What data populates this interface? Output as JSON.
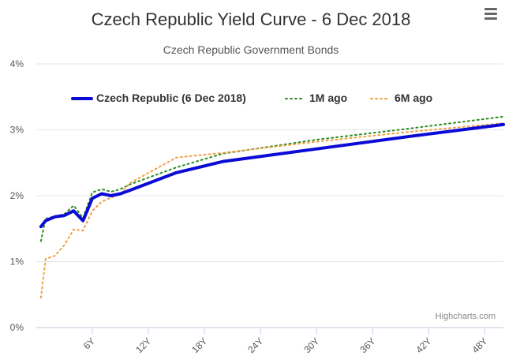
{
  "chart_data": {
    "type": "line",
    "title": "Czech Republic Yield Curve - 6 Dec 2018",
    "subtitle": "Czech Republic Government Bonds",
    "xlabel": "",
    "ylabel": "",
    "xlim": [
      0,
      50
    ],
    "ylim": [
      0,
      4
    ],
    "x_ticks": [
      {
        "value": 6,
        "label": "6Y"
      },
      {
        "value": 12,
        "label": "12Y"
      },
      {
        "value": 18,
        "label": "18Y"
      },
      {
        "value": 24,
        "label": "24Y"
      },
      {
        "value": 30,
        "label": "30Y"
      },
      {
        "value": 36,
        "label": "36Y"
      },
      {
        "value": 42,
        "label": "42Y"
      },
      {
        "value": 48,
        "label": "48Y"
      }
    ],
    "y_ticks": [
      {
        "value": 0,
        "label": "0%"
      },
      {
        "value": 1,
        "label": "1%"
      },
      {
        "value": 2,
        "label": "2%"
      },
      {
        "value": 3,
        "label": "3%"
      },
      {
        "value": 4,
        "label": "4%"
      }
    ],
    "grid": true,
    "legend_position": "top",
    "series": [
      {
        "name": "Czech Republic (6 Dec 2018)",
        "color": "#0b0bd6",
        "style": "solid",
        "x": [
          0.5,
          1,
          2,
          3,
          4,
          5,
          6,
          7,
          8,
          9,
          10,
          15,
          20,
          30,
          40,
          50
        ],
        "values": [
          1.53,
          1.62,
          1.68,
          1.7,
          1.77,
          1.62,
          1.96,
          2.03,
          2.0,
          2.03,
          2.08,
          2.35,
          2.52,
          2.71,
          2.9,
          3.08
        ]
      },
      {
        "name": "1M ago",
        "color": "#2e8b22",
        "style": "dotted",
        "x": [
          0.5,
          1,
          2,
          3,
          4,
          5,
          6,
          7,
          8,
          9,
          10,
          15,
          20,
          30,
          40,
          50
        ],
        "values": [
          1.31,
          1.65,
          1.69,
          1.72,
          1.85,
          1.66,
          2.05,
          2.1,
          2.06,
          2.1,
          2.17,
          2.43,
          2.64,
          2.85,
          3.02,
          3.2
        ]
      },
      {
        "name": "6M ago",
        "color": "#f0a040",
        "style": "dotted",
        "x": [
          0.5,
          1,
          2,
          3,
          4,
          5,
          6,
          7,
          8,
          9,
          10,
          15,
          20,
          30,
          40,
          50
        ],
        "values": [
          0.45,
          1.04,
          1.09,
          1.25,
          1.49,
          1.47,
          1.77,
          1.91,
          1.97,
          2.03,
          2.19,
          2.58,
          2.65,
          2.82,
          2.97,
          3.1
        ]
      }
    ],
    "credits": "Highcharts.com"
  }
}
